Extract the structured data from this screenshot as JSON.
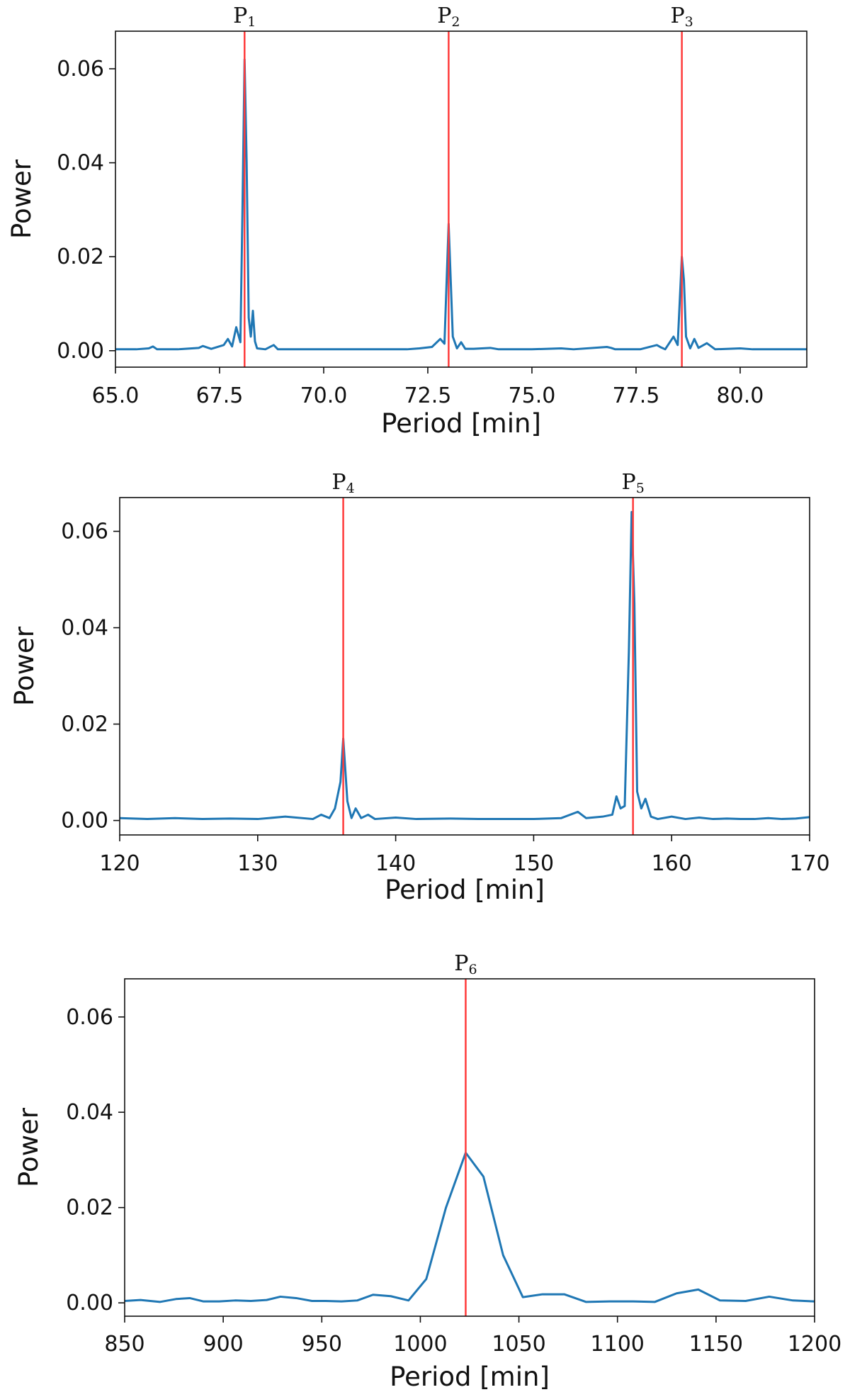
{
  "chart_data": [
    {
      "type": "line",
      "xlabel": "Period [min]",
      "ylabel": "Power",
      "xlim": [
        65.0,
        81.6
      ],
      "ylim": [
        -0.0035,
        0.068
      ],
      "xticks": [
        65.0,
        67.5,
        70.0,
        72.5,
        75.0,
        77.5,
        80.0
      ],
      "xtick_labels": [
        "65.0",
        "67.5",
        "70.0",
        "72.5",
        "75.0",
        "77.5",
        "80.0"
      ],
      "yticks": [
        0.0,
        0.02,
        0.04,
        0.06
      ],
      "ytick_labels": [
        "0.00",
        "0.02",
        "0.04",
        "0.06"
      ],
      "line_color": "#1f77b4",
      "marker_color": "#ff3b3b",
      "markers": [
        {
          "x": 68.1,
          "base": "P",
          "sub": "1"
        },
        {
          "x": 73.0,
          "base": "P",
          "sub": "2"
        },
        {
          "x": 78.6,
          "base": "P",
          "sub": "3"
        }
      ],
      "series": [
        {
          "name": "power",
          "x": [
            65.0,
            65.5,
            65.8,
            65.9,
            66.0,
            66.5,
            67.0,
            67.1,
            67.3,
            67.6,
            67.7,
            67.8,
            67.9,
            68.0,
            68.05,
            68.1,
            68.15,
            68.2,
            68.25,
            68.3,
            68.35,
            68.4,
            68.6,
            68.8,
            68.9,
            69.5,
            70.0,
            71.0,
            72.0,
            72.3,
            72.6,
            72.8,
            72.9,
            73.0,
            73.05,
            73.1,
            73.2,
            73.3,
            73.4,
            73.6,
            74.0,
            74.2,
            75.0,
            75.7,
            76.0,
            76.8,
            76.9,
            77.0,
            77.6,
            78.0,
            78.1,
            78.2,
            78.4,
            78.5,
            78.6,
            78.65,
            78.7,
            78.8,
            78.9,
            79.0,
            79.2,
            79.4,
            80.0,
            80.3,
            81.0,
            81.6
          ],
          "y": [
            0.0003,
            0.0003,
            0.0005,
            0.0009,
            0.0003,
            0.0003,
            0.0006,
            0.001,
            0.0004,
            0.0012,
            0.0025,
            0.0009,
            0.005,
            0.0018,
            0.03,
            0.062,
            0.04,
            0.007,
            0.003,
            0.0085,
            0.002,
            0.0005,
            0.0003,
            0.0012,
            0.0003,
            0.0003,
            0.0003,
            0.0003,
            0.0003,
            0.0005,
            0.0008,
            0.0025,
            0.0015,
            0.027,
            0.015,
            0.003,
            0.0005,
            0.0018,
            0.0004,
            0.0004,
            0.0006,
            0.0003,
            0.0003,
            0.0005,
            0.0003,
            0.0008,
            0.0006,
            0.0003,
            0.0003,
            0.0012,
            0.0007,
            0.0003,
            0.003,
            0.0012,
            0.02,
            0.015,
            0.003,
            0.0005,
            0.0025,
            0.0006,
            0.0016,
            0.0003,
            0.0005,
            0.0003,
            0.0003,
            0.0003
          ]
        }
      ]
    },
    {
      "type": "line",
      "xlabel": "Period [min]",
      "ylabel": "Power",
      "xlim": [
        120,
        170
      ],
      "ylim": [
        -0.003,
        0.067
      ],
      "xticks": [
        120,
        130,
        140,
        150,
        160,
        170
      ],
      "xtick_labels": [
        "120",
        "130",
        "140",
        "150",
        "160",
        "170"
      ],
      "yticks": [
        0.0,
        0.02,
        0.04,
        0.06
      ],
      "ytick_labels": [
        "0.00",
        "0.02",
        "0.04",
        "0.06"
      ],
      "line_color": "#1f77b4",
      "marker_color": "#ff3b3b",
      "markers": [
        {
          "x": 136.2,
          "base": "P",
          "sub": "4"
        },
        {
          "x": 157.2,
          "base": "P",
          "sub": "5"
        }
      ],
      "series": [
        {
          "name": "power",
          "x": [
            120,
            122,
            124,
            126,
            128,
            130,
            132,
            134,
            134.6,
            135.2,
            135.6,
            136.0,
            136.2,
            136.5,
            136.8,
            137.1,
            137.5,
            138,
            138.5,
            140,
            141.5,
            144,
            146,
            148,
            150,
            152,
            153.2,
            153.8,
            155,
            155.7,
            156.0,
            156.3,
            156.6,
            156.9,
            157.1,
            157.3,
            157.5,
            157.8,
            158.1,
            158.5,
            159,
            160,
            161,
            162,
            163,
            164,
            165,
            166,
            167,
            168,
            169,
            170
          ],
          "y": [
            0.0005,
            0.0003,
            0.0005,
            0.0003,
            0.0004,
            0.0003,
            0.0008,
            0.0003,
            0.0012,
            0.0005,
            0.0025,
            0.008,
            0.017,
            0.004,
            0.0005,
            0.0025,
            0.0005,
            0.0012,
            0.0003,
            0.0006,
            0.0003,
            0.0004,
            0.0003,
            0.0003,
            0.0003,
            0.0005,
            0.0018,
            0.0005,
            0.0008,
            0.0012,
            0.005,
            0.0025,
            0.003,
            0.035,
            0.064,
            0.045,
            0.006,
            0.0025,
            0.0045,
            0.0008,
            0.0003,
            0.0008,
            0.0003,
            0.0006,
            0.0003,
            0.0004,
            0.0003,
            0.0003,
            0.0005,
            0.0003,
            0.0004,
            0.0007
          ]
        }
      ]
    },
    {
      "type": "line",
      "xlabel": "Period [min]",
      "ylabel": "Power",
      "xlim": [
        850,
        1200
      ],
      "ylim": [
        -0.0028,
        0.068
      ],
      "xticks": [
        850,
        900,
        950,
        1000,
        1050,
        1100,
        1150,
        1200
      ],
      "xtick_labels": [
        "850",
        "900",
        "950",
        "1000",
        "1050",
        "1100",
        "1150",
        "1200"
      ],
      "yticks": [
        0.0,
        0.02,
        0.04,
        0.06
      ],
      "ytick_labels": [
        "0.00",
        "0.02",
        "0.04",
        "0.06"
      ],
      "line_color": "#1f77b4",
      "marker_color": "#ff3b3b",
      "markers": [
        {
          "x": 1023,
          "base": "P",
          "sub": "6"
        }
      ],
      "series": [
        {
          "name": "power",
          "x": [
            850,
            858,
            868,
            876,
            883,
            890,
            898,
            906,
            914,
            922,
            929,
            937,
            945,
            952,
            960,
            968,
            976,
            985,
            994,
            1003,
            1013,
            1023,
            1032,
            1042,
            1052,
            1062,
            1073,
            1084,
            1096,
            1108,
            1119,
            1130,
            1141,
            1152,
            1165,
            1177,
            1189,
            1200
          ],
          "y": [
            0.0004,
            0.0006,
            0.0002,
            0.0008,
            0.001,
            0.0003,
            0.0003,
            0.0005,
            0.0004,
            0.0006,
            0.0013,
            0.001,
            0.0004,
            0.0004,
            0.0003,
            0.0005,
            0.0017,
            0.0014,
            0.0005,
            0.005,
            0.02,
            0.0315,
            0.0265,
            0.01,
            0.0012,
            0.0018,
            0.0018,
            0.0002,
            0.0003,
            0.0003,
            0.0002,
            0.002,
            0.0028,
            0.0005,
            0.0004,
            0.0013,
            0.0005,
            0.0003
          ]
        }
      ]
    }
  ]
}
